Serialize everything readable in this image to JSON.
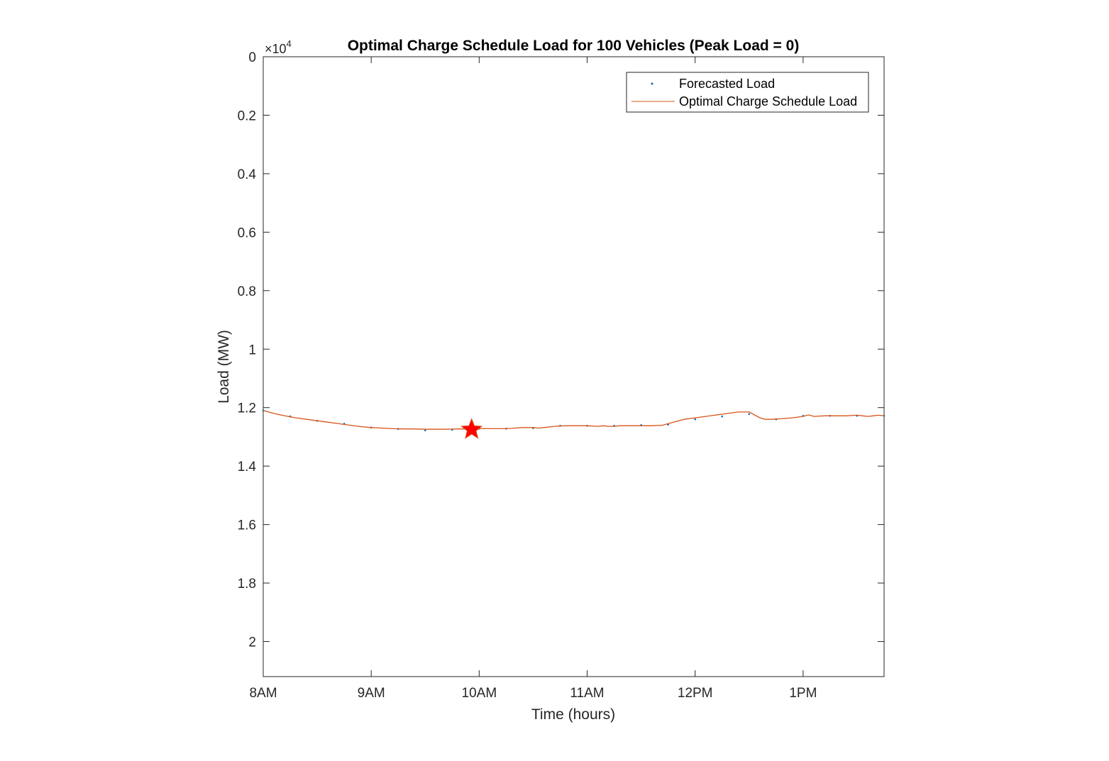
{
  "chart_data": {
    "type": "line",
    "title": "Optimal Charge Schedule Load for 100 Vehicles (Peak Load = 0)",
    "xlabel": "Time (hours)",
    "ylabel": "Load (MW)",
    "y_multiplier_label": "×10",
    "y_multiplier_exponent": "4",
    "y_direction": "reversed",
    "xlim": [
      8.0,
      13.75
    ],
    "ylim": [
      0,
      2.12
    ],
    "x_ticks": [
      8,
      9,
      10,
      11,
      12,
      13
    ],
    "x_tick_labels": [
      "8AM",
      "9AM",
      "10AM",
      "11AM",
      "12PM",
      "1PM"
    ],
    "y_ticks": [
      0,
      0.2,
      0.4,
      0.6,
      0.8,
      1,
      1.2,
      1.4,
      1.6,
      1.8,
      2
    ],
    "y_tick_labels": [
      "0",
      "0.2",
      "0.4",
      "0.6",
      "0.8",
      "1",
      "1.2",
      "1.4",
      "1.6",
      "1.8",
      "2"
    ],
    "grid": false,
    "legend_position": "top-right",
    "series": [
      {
        "name": "Forecasted Load",
        "style": "dot-markers",
        "color": "#0072BD",
        "x": [
          8.0,
          8.25,
          8.5,
          8.75,
          9.0,
          9.25,
          9.5,
          9.75,
          10.0,
          10.25,
          10.5,
          10.75,
          11.0,
          11.25,
          11.5,
          11.75,
          12.0,
          12.25,
          12.5,
          12.75,
          13.0,
          13.25,
          13.5,
          13.75
        ],
        "values": [
          1.21,
          1.23,
          1.245,
          1.255,
          1.268,
          1.273,
          1.278,
          1.276,
          1.272,
          1.272,
          1.27,
          1.262,
          1.262,
          1.262,
          1.26,
          1.258,
          1.24,
          1.23,
          1.222,
          1.24,
          1.228,
          1.228,
          1.228,
          1.228
        ]
      },
      {
        "name": "Optimal Charge Schedule Load",
        "style": "line",
        "color": "#D95319",
        "x": [
          8.0,
          8.1,
          8.2,
          8.3,
          8.4,
          8.5,
          8.6,
          8.7,
          8.8,
          8.9,
          9.0,
          9.1,
          9.2,
          9.3,
          9.4,
          9.5,
          9.6,
          9.7,
          9.8,
          9.9,
          10.0,
          10.1,
          10.2,
          10.3,
          10.4,
          10.5,
          10.55,
          10.6,
          10.7,
          10.8,
          10.9,
          11.0,
          11.1,
          11.15,
          11.2,
          11.25,
          11.3,
          11.4,
          11.5,
          11.6,
          11.7,
          11.8,
          11.9,
          12.0,
          12.1,
          12.2,
          12.3,
          12.4,
          12.5,
          12.6,
          12.65,
          12.7,
          12.8,
          12.9,
          13.0,
          13.05,
          13.1,
          13.2,
          13.3,
          13.4,
          13.5,
          13.55,
          13.6,
          13.65,
          13.7,
          13.75
        ],
        "values": [
          1.21,
          1.22,
          1.228,
          1.235,
          1.24,
          1.245,
          1.25,
          1.255,
          1.26,
          1.265,
          1.268,
          1.27,
          1.272,
          1.273,
          1.273,
          1.274,
          1.274,
          1.274,
          1.273,
          1.273,
          1.272,
          1.272,
          1.272,
          1.271,
          1.268,
          1.268,
          1.27,
          1.268,
          1.264,
          1.262,
          1.262,
          1.262,
          1.264,
          1.262,
          1.264,
          1.264,
          1.262,
          1.262,
          1.262,
          1.262,
          1.26,
          1.25,
          1.24,
          1.235,
          1.23,
          1.225,
          1.22,
          1.215,
          1.215,
          1.235,
          1.24,
          1.24,
          1.238,
          1.235,
          1.23,
          1.225,
          1.23,
          1.228,
          1.228,
          1.228,
          1.226,
          1.228,
          1.23,
          1.228,
          1.226,
          1.228
        ]
      }
    ],
    "annotations": [
      {
        "type": "star-marker",
        "x": 9.93,
        "value": 1.275,
        "color": "#FF0000"
      }
    ]
  }
}
